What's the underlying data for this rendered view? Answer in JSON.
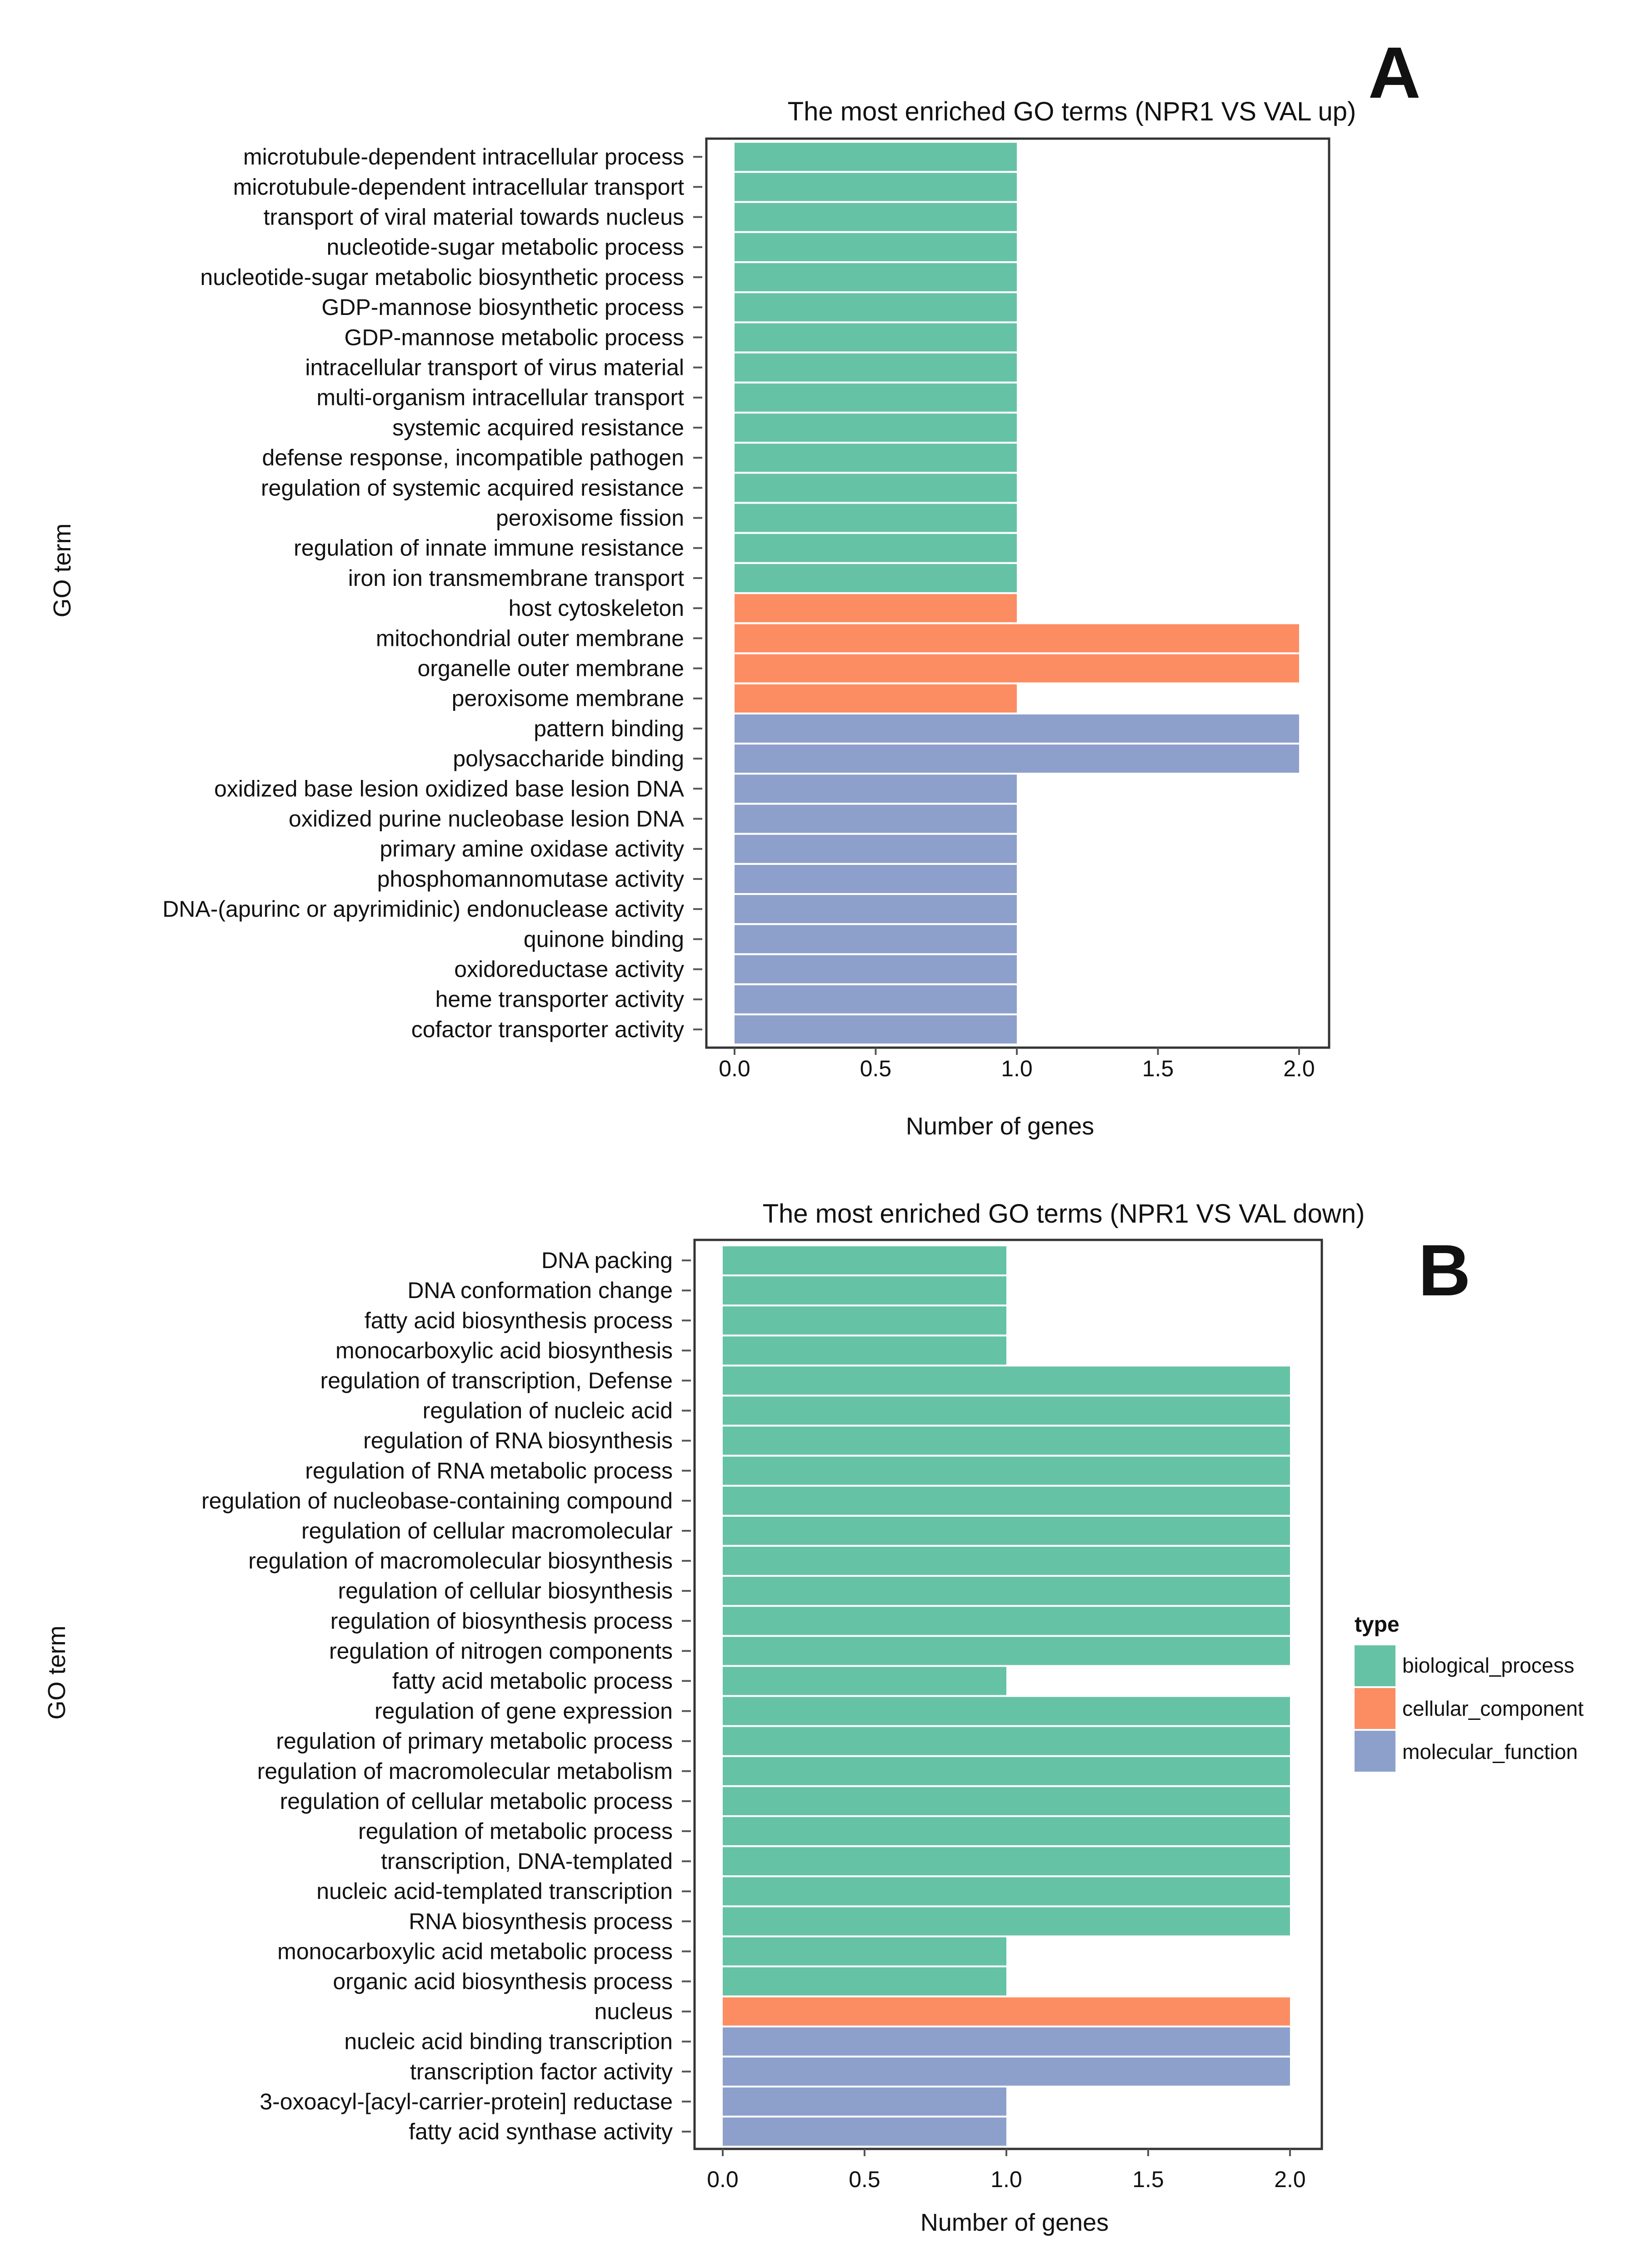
{
  "colors": {
    "biological_process": "#66c2a5",
    "cellular_component": "#fc8d62",
    "molecular_function": "#8da0cb"
  },
  "legend": {
    "title": "type",
    "items": [
      "biological_process",
      "cellular_component",
      "molecular_function"
    ]
  },
  "chart_data": [
    {
      "panel_label": "A",
      "type": "bar",
      "orientation": "horizontal",
      "title": "The most enriched GO terms (NPR1 VS VAL up)",
      "xlabel": "Number of genes",
      "ylabel": "GO term",
      "xlim": [
        0,
        2
      ],
      "xticks": [
        "0.0",
        "0.5",
        "1.0",
        "1.5",
        "2.0"
      ],
      "categories": [
        "microtubule-dependent intracellular process",
        "microtubule-dependent intracellular transport",
        "transport of viral material towards nucleus",
        "nucleotide-sugar metabolic process",
        "nucleotide-sugar metabolic biosynthetic process",
        "GDP-mannose biosynthetic process",
        "GDP-mannose metabolic process",
        "intracellular transport of virus material",
        "multi-organism intracellular transport",
        "systemic acquired resistance",
        "defense response, incompatible pathogen",
        "regulation of systemic acquired resistance",
        "peroxisome fission",
        "regulation of innate immune resistance",
        "iron ion transmembrane transport",
        "host cytoskeleton",
        "mitochondrial outer membrane",
        "organelle outer membrane",
        "peroxisome membrane",
        "pattern binding",
        "polysaccharide binding",
        "oxidized base lesion oxidized base lesion DNA",
        "oxidized purine nucleobase lesion DNA",
        "primary amine oxidase activity",
        "phosphomannomutase activity",
        "DNA-(apurinc or apyrimidinic) endonuclease activity",
        "quinone binding",
        "oxidoreductase activity",
        "heme transporter activity",
        "cofactor transporter activity"
      ],
      "values": [
        1,
        1,
        1,
        1,
        1,
        1,
        1,
        1,
        1,
        1,
        1,
        1,
        1,
        1,
        1,
        1,
        2,
        2,
        1,
        2,
        2,
        1,
        1,
        1,
        1,
        1,
        1,
        1,
        1,
        1
      ],
      "types": [
        "biological_process",
        "biological_process",
        "biological_process",
        "biological_process",
        "biological_process",
        "biological_process",
        "biological_process",
        "biological_process",
        "biological_process",
        "biological_process",
        "biological_process",
        "biological_process",
        "biological_process",
        "biological_process",
        "biological_process",
        "cellular_component",
        "cellular_component",
        "cellular_component",
        "cellular_component",
        "molecular_function",
        "molecular_function",
        "molecular_function",
        "molecular_function",
        "molecular_function",
        "molecular_function",
        "molecular_function",
        "molecular_function",
        "molecular_function",
        "molecular_function",
        "molecular_function"
      ]
    },
    {
      "panel_label": "B",
      "type": "bar",
      "orientation": "horizontal",
      "title": "The most enriched GO terms (NPR1 VS VAL down)",
      "xlabel": "Number of genes",
      "ylabel": "GO term",
      "xlim": [
        0,
        2
      ],
      "xticks": [
        "0.0",
        "0.5",
        "1.0",
        "1.5",
        "2.0"
      ],
      "categories": [
        "DNA packing",
        "DNA conformation change",
        "fatty acid biosynthesis process",
        "monocarboxylic acid biosynthesis",
        "regulation of transcription, Defense",
        "regulation of nucleic acid",
        "regulation of RNA biosynthesis",
        "regulation of RNA metabolic process",
        "regulation of nucleobase-containing compound",
        "regulation of cellular macromolecular",
        "regulation of macromolecular biosynthesis",
        "regulation of cellular biosynthesis",
        "regulation of biosynthesis process",
        "regulation of nitrogen components",
        "fatty acid metabolic process",
        "regulation of gene expression",
        "regulation of primary metabolic process",
        "regulation of macromolecular metabolism",
        "regulation of cellular metabolic process",
        "regulation of metabolic process",
        "transcription, DNA-templated",
        "nucleic acid-templated transcription",
        "RNA biosynthesis process",
        "monocarboxylic acid metabolic process",
        "organic acid biosynthesis process",
        "nucleus",
        "nucleic acid binding transcription",
        "transcription factor activity",
        "3-oxoacyl-[acyl-carrier-protein] reductase",
        "fatty acid synthase activity"
      ],
      "values": [
        1,
        1,
        1,
        1,
        2,
        2,
        2,
        2,
        2,
        2,
        2,
        2,
        2,
        2,
        1,
        2,
        2,
        2,
        2,
        2,
        2,
        2,
        2,
        1,
        1,
        2,
        2,
        2,
        1,
        1
      ],
      "types": [
        "biological_process",
        "biological_process",
        "biological_process",
        "biological_process",
        "biological_process",
        "biological_process",
        "biological_process",
        "biological_process",
        "biological_process",
        "biological_process",
        "biological_process",
        "biological_process",
        "biological_process",
        "biological_process",
        "biological_process",
        "biological_process",
        "biological_process",
        "biological_process",
        "biological_process",
        "biological_process",
        "biological_process",
        "biological_process",
        "biological_process",
        "biological_process",
        "biological_process",
        "cellular_component",
        "molecular_function",
        "molecular_function",
        "molecular_function",
        "molecular_function"
      ]
    }
  ]
}
